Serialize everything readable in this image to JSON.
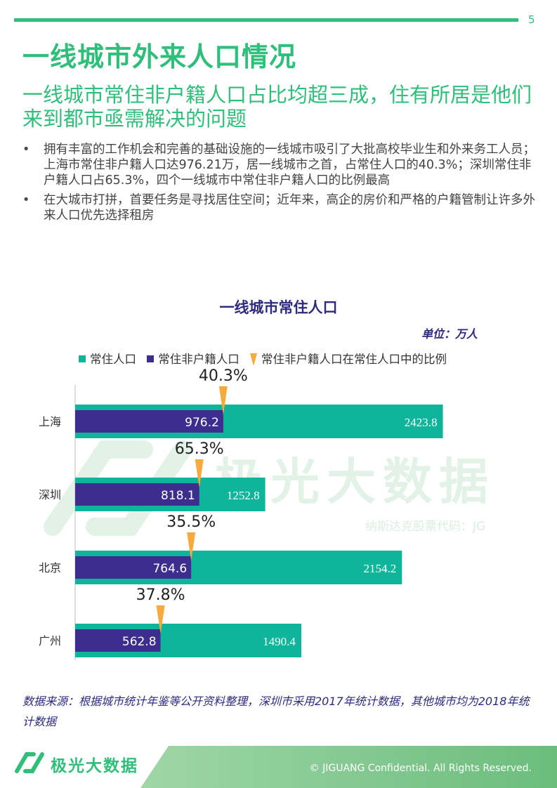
{
  "page_number": "5",
  "title": "一线城市外来人口情况",
  "subtitle": "一线城市常住非户籍人口占比均超三成，住有所居是他们来到都市亟需解决的问题",
  "bullets": [
    "拥有丰富的工作机会和完善的基础设施的一线城市吸引了大批高校毕业生和外来务工人员；上海市常住非户籍人口达976.21万，居一线城市之首，占常住人口的40.3%；深圳常住非户籍人口占65.3%，四个一线城市中常住非户籍人口的比例最高",
    "在大城市打拼，首要任务是寻找居住空间；近年来，高企的房价和严格的户籍管制让许多外来人口优先选择租房"
  ],
  "bullet_symbol": "•",
  "watermark": {
    "text": "极光大数据",
    "sub": "纳斯达克股票代码：JG"
  },
  "chart_data": {
    "type": "bar",
    "orientation": "horizontal",
    "title": "一线城市常住人口",
    "unit": "单位：万人",
    "legend": [
      "常住人口",
      "常住非户籍人口",
      "常住非户籍人口在常住人口中的比例"
    ],
    "categories": [
      "上海",
      "深圳",
      "北京",
      "广州"
    ],
    "series": [
      {
        "name": "常住人口",
        "values": [
          2423.8,
          1252.8,
          2154.2,
          1490.4
        ],
        "color": "#0fb59a"
      },
      {
        "name": "常住非户籍人口",
        "values": [
          976.2,
          818.1,
          764.6,
          562.8
        ],
        "color": "#3d2d8f"
      }
    ],
    "ratio_labels": [
      "40.3%",
      "65.3%",
      "35.5%",
      "37.8%"
    ],
    "marker_color": "#f7a93b",
    "xlim": [
      0,
      2500
    ],
    "grid": false,
    "legend_position": "top"
  },
  "source": "数据来源：根据城市统计年鉴等公开资料整理，深圳市采用2017年统计数据，其他城市均为2018年统计数据",
  "footer": {
    "brand": "极光大数据",
    "copyright": "© JIGUANG Confidential. All Rights Reserved."
  }
}
